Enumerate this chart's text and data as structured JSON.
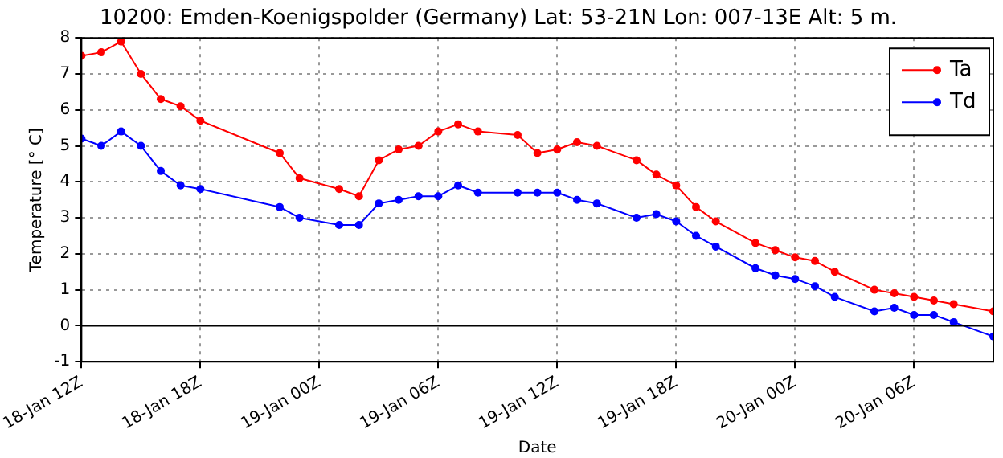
{
  "chart_data": {
    "type": "line",
    "title": "10200: Emden-Koenigspolder (Germany) Lat: 53-21N Lon: 007-13E Alt: 5 m.",
    "xlabel": "Date",
    "ylabel": "Temperature [° C]",
    "x": [
      "--01-18T12:00",
      "--01-18T13:00",
      "--01-18T14:00",
      "--01-18T15:00",
      "--01-18T16:00",
      "--01-18T17:00",
      "--01-18T18:00",
      "--01-18T22:00",
      "--01-18T23:00",
      "--01-19T01:00",
      "--01-19T02:00",
      "--01-19T03:00",
      "--01-19T04:00",
      "--01-19T05:00",
      "--01-19T06:00",
      "--01-19T07:00",
      "--01-19T08:00",
      "--01-19T10:00",
      "--01-19T11:00",
      "--01-19T12:00",
      "--01-19T13:00",
      "--01-19T14:00",
      "--01-19T16:00",
      "--01-19T17:00",
      "--01-19T18:00",
      "--01-19T19:00",
      "--01-19T20:00",
      "--01-19T22:00",
      "--01-19T23:00",
      "--01-20T00:00",
      "--01-20T01:00",
      "--01-20T02:00",
      "--01-20T04:00",
      "--01-20T05:00",
      "--01-20T06:00",
      "--01-20T07:00",
      "--01-20T08:00",
      "--01-20T10:00"
    ],
    "series": [
      {
        "name": "Ta",
        "color": "#ff0000",
        "values": [
          7.5,
          7.6,
          7.9,
          7.0,
          6.3,
          6.1,
          5.7,
          4.8,
          4.1,
          3.8,
          3.6,
          4.6,
          4.9,
          5.0,
          5.4,
          5.6,
          5.4,
          5.3,
          4.8,
          4.9,
          5.1,
          5.0,
          4.6,
          4.2,
          3.9,
          3.3,
          2.9,
          2.3,
          2.1,
          1.9,
          1.8,
          1.5,
          1.0,
          0.9,
          0.8,
          0.7,
          0.6,
          0.4
        ]
      },
      {
        "name": "Td",
        "color": "#0000ff",
        "values": [
          5.2,
          5.0,
          5.4,
          5.0,
          4.3,
          3.9,
          3.8,
          3.3,
          3.0,
          2.8,
          2.8,
          3.4,
          3.5,
          3.6,
          3.6,
          3.9,
          3.7,
          3.7,
          3.7,
          3.7,
          3.5,
          3.4,
          3.0,
          3.1,
          2.9,
          2.5,
          2.2,
          1.6,
          1.4,
          1.3,
          1.1,
          0.8,
          0.4,
          0.5,
          0.3,
          0.3,
          0.1,
          -0.3
        ]
      }
    ],
    "xlim": [
      "--01-18T12:00",
      "--01-20T10:00"
    ],
    "xticks": [
      {
        "value": "--01-18T12:00",
        "label": "18-Jan 12Z"
      },
      {
        "value": "--01-18T18:00",
        "label": "18-Jan 18Z"
      },
      {
        "value": "--01-19T00:00",
        "label": "19-Jan 00Z"
      },
      {
        "value": "--01-19T06:00",
        "label": "19-Jan 06Z"
      },
      {
        "value": "--01-19T12:00",
        "label": "19-Jan 12Z"
      },
      {
        "value": "--01-19T18:00",
        "label": "19-Jan 18Z"
      },
      {
        "value": "--01-20T00:00",
        "label": "20-Jan 00Z"
      },
      {
        "value": "--01-20T06:00",
        "label": "20-Jan 06Z"
      }
    ],
    "ylim": [
      -1,
      8
    ],
    "yticks": [
      -1,
      0,
      1,
      2,
      3,
      4,
      5,
      6,
      7,
      8
    ],
    "ref_lines": [
      {
        "axis": "y",
        "value": 0,
        "color": "#000000"
      }
    ],
    "grid": true,
    "legend": "top right",
    "marker": "circle",
    "line_style": "solid"
  }
}
